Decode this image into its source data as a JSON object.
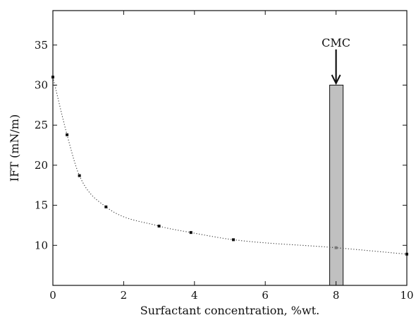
{
  "chart_data": {
    "type": "scatter",
    "title": "",
    "xlabel": "Surfactant concentration, %wt.",
    "ylabel": "IFT (mN/m)",
    "xlim": [
      0,
      10
    ],
    "ylim": [
      5,
      39.3
    ],
    "x_ticks": [
      0,
      2,
      4,
      6,
      8,
      10
    ],
    "y_ticks": [
      10,
      15,
      20,
      25,
      30,
      35
    ],
    "grid": false,
    "legend": "none",
    "series": [
      {
        "x": [
          0,
          0.4,
          0.75,
          1.5,
          3.0,
          3.9,
          5.1,
          8.0,
          10.0
        ],
        "y": [
          31.0,
          23.8,
          18.7,
          14.8,
          12.4,
          11.6,
          10.7,
          9.7,
          8.9
        ],
        "fit_curve": true
      }
    ],
    "annotations": [
      {
        "text": "CMC",
        "x": 8.0,
        "band": {
          "x_min": 7.82,
          "x_max": 8.2,
          "y_max": 30.0,
          "color": "#c0c0c0"
        }
      }
    ]
  }
}
